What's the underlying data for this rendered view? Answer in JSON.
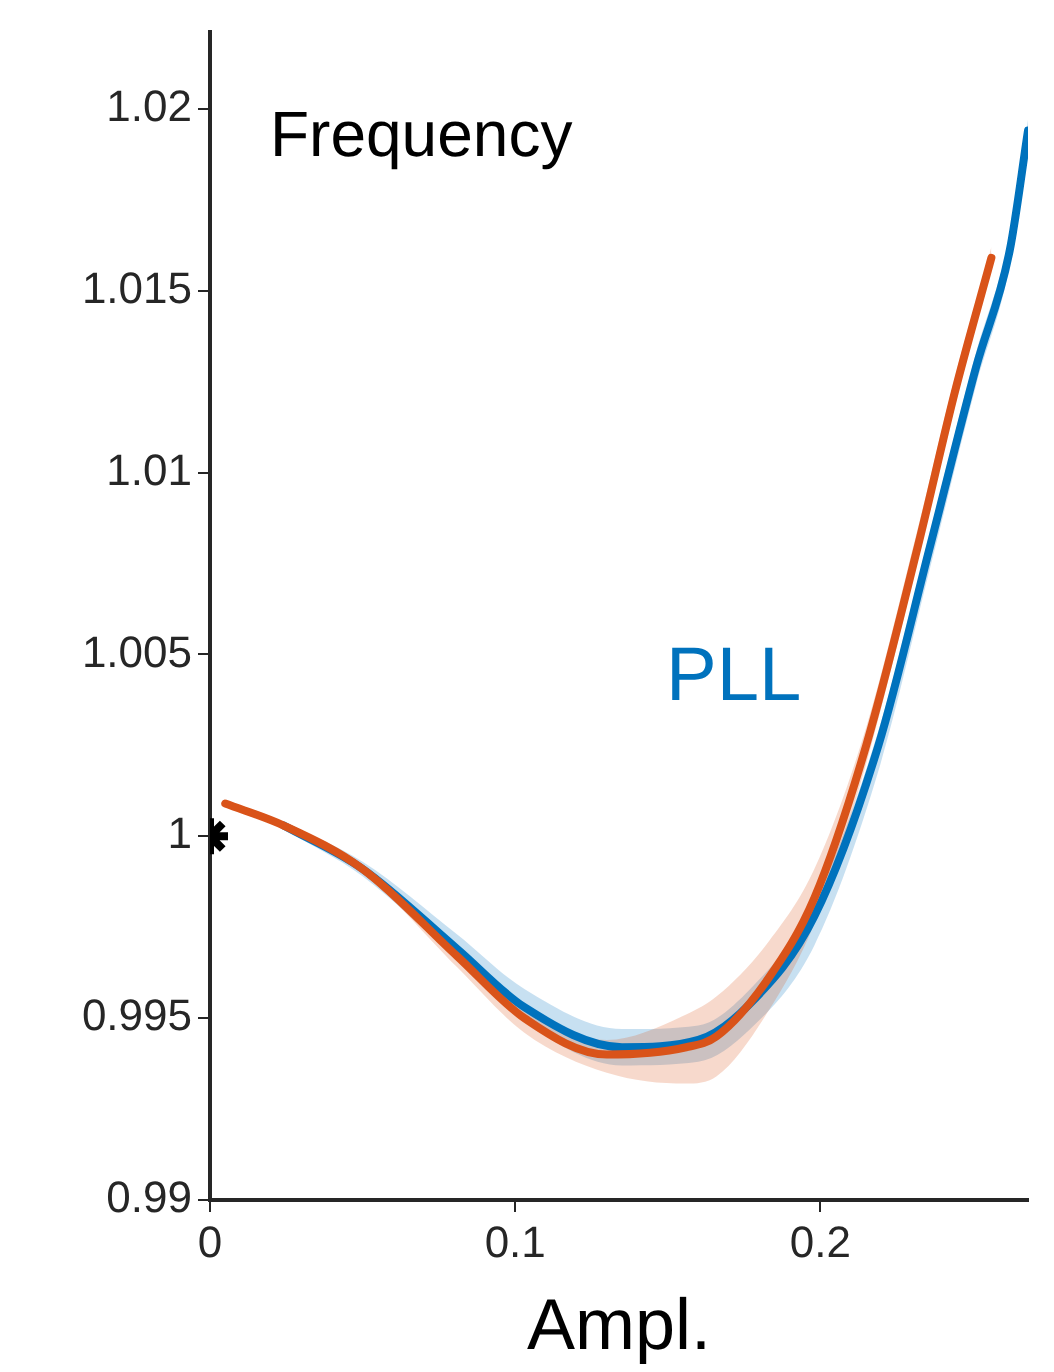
{
  "chart_data": {
    "type": "line",
    "title": "Frequency",
    "xlabel": "Ampl.",
    "xlim": [
      0,
      0.268
    ],
    "xticks": [
      0,
      0.1,
      0.2
    ],
    "ylim": [
      0.99,
      1.0221
    ],
    "yticks": [
      0.99,
      0.995,
      1,
      1.005,
      1.01,
      1.015,
      1.02
    ],
    "grid": false,
    "legend": false,
    "line_style": "solid",
    "marker": "none",
    "series": [
      {
        "color": "#d95319",
        "x": [
          0.005,
          0.024,
          0.05,
          0.081,
          0.103,
          0.13,
          0.156,
          0.166,
          0.183,
          0.198,
          0.215,
          0.232,
          0.244,
          0.256
        ],
        "values": [
          1.0009,
          1.0003,
          0.9991,
          0.9967,
          0.995,
          0.994,
          0.9942,
          0.9945,
          0.9961,
          0.9983,
          1.0025,
          1.008,
          1.0122,
          1.0159
        ],
        "lower": [
          1.0008,
          1.0002,
          0.999,
          0.9964,
          0.9946,
          0.9935,
          0.9932,
          0.9934,
          0.9952,
          0.9976,
          1.002,
          1.0076,
          1.0118,
          1.0156
        ],
        "upper": [
          1.001,
          1.0004,
          0.9992,
          0.997,
          0.9953,
          0.9944,
          0.9951,
          0.9956,
          0.9971,
          0.9991,
          1.003,
          1.0085,
          1.0126,
          1.0162
        ]
      },
      {
        "name": "PLL",
        "color": "#0072bd",
        "x": [
          0.024,
          0.05,
          0.081,
          0.103,
          0.135,
          0.16,
          0.177,
          0.198,
          0.219,
          0.236,
          0.251,
          0.262,
          0.268
        ],
        "values": [
          1.0003,
          0.9991,
          0.9969,
          0.9953,
          0.9942,
          0.9944,
          0.9954,
          0.9978,
          1.0025,
          1.008,
          1.0129,
          1.0161,
          1.0194
        ],
        "lower": [
          1.0002,
          0.9989,
          0.9966,
          0.9949,
          0.9937,
          0.9938,
          0.9947,
          0.997,
          1.0018,
          1.0074,
          1.0124,
          1.0157,
          1.0191
        ],
        "upper": [
          1.0004,
          0.9993,
          0.9973,
          0.9958,
          0.9947,
          0.9948,
          0.9958,
          0.9982,
          1.0029,
          1.0084,
          1.0133,
          1.0165,
          1.0197
        ]
      },
      {
        "type": "scatter",
        "color": "#000000",
        "marker": "cross",
        "x": [
          0
        ],
        "values": [
          1
        ]
      }
    ]
  }
}
